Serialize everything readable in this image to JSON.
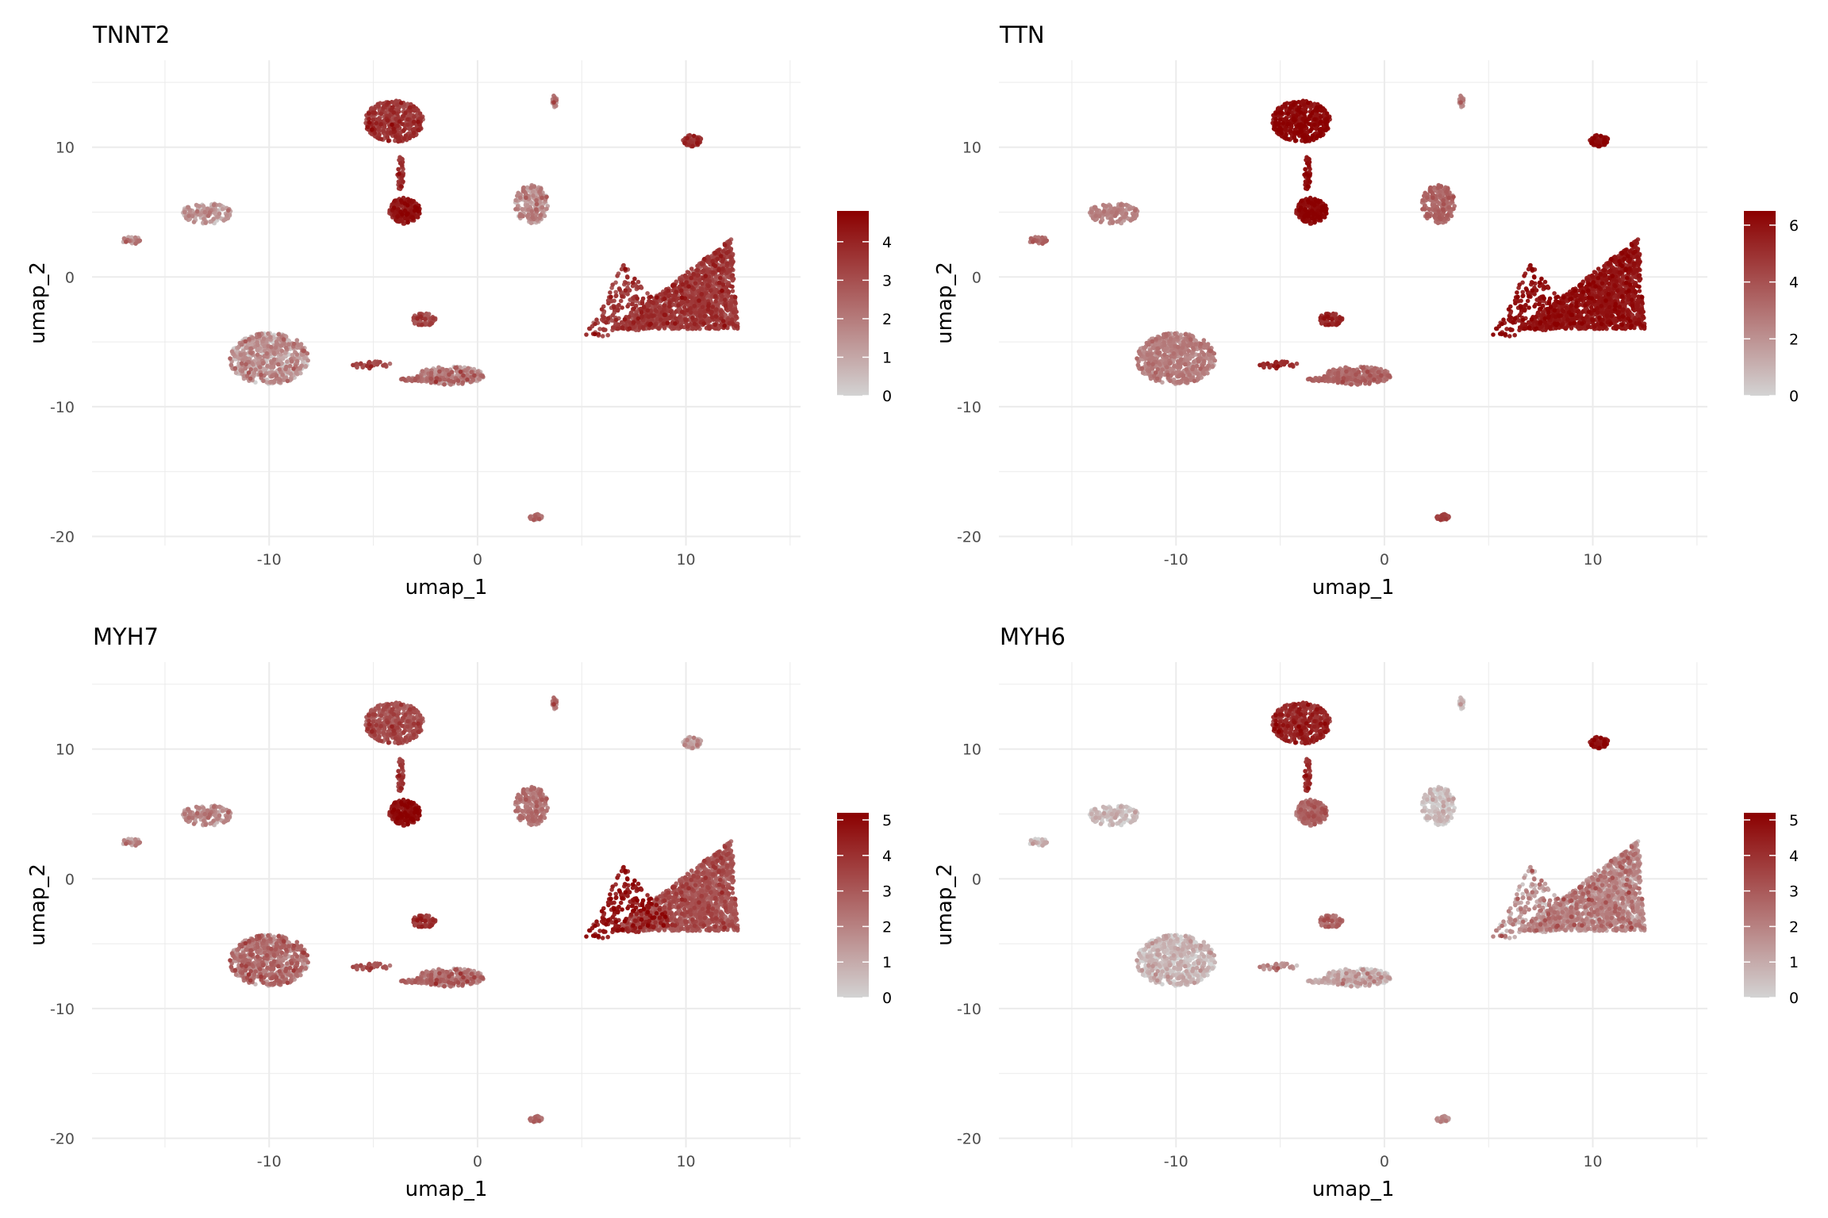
{
  "chart_data": [
    {
      "type": "scatter",
      "title": "TNNT2",
      "xlabel": "umap_1",
      "ylabel": "umap_2",
      "xlim": [
        -18.5,
        15.5
      ],
      "ylim": [
        -20.7,
        16.7
      ],
      "xticks": [
        -10,
        0,
        10
      ],
      "yticks": [
        -20,
        -10,
        0,
        10
      ],
      "grid": true,
      "legend": "right",
      "colorbar": {
        "min": 0,
        "max": 4.8,
        "ticks": [
          0,
          1,
          2,
          3,
          4
        ],
        "low_color": "#d3d3d3",
        "high_color": "#8b0000"
      },
      "expression": {
        "A_top": 3.3,
        "A_stalk": 3.4,
        "A_low": 4.0,
        "tip_top": 1.6,
        "c10": 3.5,
        "mid_up": 1.4,
        "left": 1.0,
        "far_left": 1.3,
        "star": 3.2,
        "star_arm": 3.3,
        "big_left": 1.0,
        "small_mid": 3.0,
        "mid_low": 1.5,
        "streak": 3.0,
        "line": 1.8,
        "bottom": 1.6
      }
    },
    {
      "type": "scatter",
      "title": "TTN",
      "xlabel": "umap_1",
      "ylabel": "umap_2",
      "xlim": [
        -18.5,
        15.5
      ],
      "ylim": [
        -20.7,
        16.7
      ],
      "xticks": [
        -10,
        0,
        10
      ],
      "yticks": [
        -20,
        -10,
        0,
        10
      ],
      "grid": true,
      "legend": "right",
      "colorbar": {
        "min": 0,
        "max": 6.5,
        "ticks": [
          0,
          2,
          4,
          6
        ],
        "low_color": "#d3d3d3",
        "high_color": "#8b0000"
      },
      "expression": {
        "A_top": 6.0,
        "A_stalk": 5.8,
        "A_low": 6.0,
        "tip_top": 2.0,
        "c10": 6.0,
        "mid_up": 3.2,
        "left": 2.2,
        "far_left": 3.0,
        "star": 5.6,
        "star_arm": 5.8,
        "big_left": 2.3,
        "small_mid": 5.2,
        "mid_low": 3.0,
        "streak": 5.0,
        "line": 3.0,
        "bottom": 4.0
      }
    },
    {
      "type": "scatter",
      "title": "MYH7",
      "xlabel": "umap_1",
      "ylabel": "umap_2",
      "xlim": [
        -18.5,
        15.5
      ],
      "ylim": [
        -20.7,
        16.7
      ],
      "xticks": [
        -10,
        0,
        10
      ],
      "yticks": [
        -20,
        -10,
        0,
        10
      ],
      "grid": true,
      "legend": "right",
      "colorbar": {
        "min": 0,
        "max": 5.2,
        "ticks": [
          0,
          1,
          2,
          3,
          4,
          5
        ],
        "low_color": "#d3d3d3",
        "high_color": "#8b0000"
      },
      "expression": {
        "A_top": 3.0,
        "A_stalk": 3.5,
        "A_low": 4.6,
        "tip_top": 2.0,
        "c10": 1.0,
        "mid_up": 2.2,
        "left": 1.5,
        "far_left": 1.3,
        "star": 2.9,
        "star_arm": 4.5,
        "big_left": 2.0,
        "small_mid": 3.8,
        "mid_low": 2.0,
        "streak": 3.0,
        "line": 2.0,
        "bottom": 1.8
      }
    },
    {
      "type": "scatter",
      "title": "MYH6",
      "xlabel": "umap_1",
      "ylabel": "umap_2",
      "xlim": [
        -18.5,
        15.5
      ],
      "ylim": [
        -20.7,
        16.7
      ],
      "xticks": [
        -10,
        0,
        10
      ],
      "yticks": [
        -20,
        -10,
        0,
        10
      ],
      "grid": true,
      "legend": "right",
      "colorbar": {
        "min": 0,
        "max": 5.2,
        "ticks": [
          0,
          1,
          2,
          3,
          4,
          5
        ],
        "low_color": "#d3d3d3",
        "high_color": "#8b0000"
      },
      "expression": {
        "A_top": 4.0,
        "A_stalk": 3.8,
        "A_low": 2.4,
        "tip_top": 0.2,
        "c10": 4.6,
        "mid_up": 0.3,
        "left": 0.3,
        "far_left": 0.3,
        "star": 1.5,
        "star_arm": 1.3,
        "big_left": 0.3,
        "small_mid": 2.5,
        "mid_low": 0.5,
        "streak": 1.5,
        "line": 0.4,
        "bottom": 1.0
      }
    }
  ],
  "clusters": [
    {
      "id": "A_top",
      "shape": "ellipse",
      "cx": -4.0,
      "cy": 12.0,
      "rx": 1.4,
      "ry": 1.6,
      "n": 420
    },
    {
      "id": "A_stalk",
      "shape": "ellipse",
      "cx": -3.7,
      "cy": 8.0,
      "rx": 0.15,
      "ry": 1.4,
      "n": 40
    },
    {
      "id": "A_low",
      "shape": "ellipse",
      "cx": -3.5,
      "cy": 5.1,
      "rx": 0.75,
      "ry": 1.0,
      "n": 200
    },
    {
      "id": "tip_top",
      "shape": "ellipse",
      "cx": 3.7,
      "cy": 13.5,
      "rx": 0.12,
      "ry": 0.5,
      "n": 20
    },
    {
      "id": "c10",
      "shape": "ellipse",
      "cx": 10.3,
      "cy": 10.5,
      "rx": 0.45,
      "ry": 0.45,
      "n": 60
    },
    {
      "id": "mid_up",
      "shape": "ellipse",
      "cx": 2.6,
      "cy": 5.6,
      "rx": 0.8,
      "ry": 1.5,
      "n": 180
    },
    {
      "id": "left",
      "shape": "ellipse",
      "cx": -13.0,
      "cy": 4.9,
      "rx": 1.2,
      "ry": 0.8,
      "n": 150
    },
    {
      "id": "far_left",
      "shape": "ellipse",
      "cx": -16.6,
      "cy": 2.8,
      "rx": 0.45,
      "ry": 0.3,
      "n": 35
    },
    {
      "id": "star",
      "shape": "triangle",
      "pts": [
        [
          12.2,
          3.0
        ],
        [
          6.5,
          -4.0
        ],
        [
          12.5,
          -4.0
        ]
      ],
      "n": 1300
    },
    {
      "id": "star_arm",
      "shape": "triangle",
      "pts": [
        [
          7.0,
          1.0
        ],
        [
          5.0,
          -5.0
        ],
        [
          9.5,
          -3.5
        ]
      ],
      "n": 220
    },
    {
      "id": "big_left",
      "shape": "ellipse",
      "cx": -10.0,
      "cy": -6.3,
      "rx": 1.9,
      "ry": 2.0,
      "n": 650
    },
    {
      "id": "small_mid",
      "shape": "ellipse",
      "cx": -2.6,
      "cy": -3.3,
      "rx": 0.6,
      "ry": 0.5,
      "n": 60
    },
    {
      "id": "mid_low",
      "shape": "ellipse",
      "cx": -1.3,
      "cy": -7.6,
      "rx": 1.6,
      "ry": 0.7,
      "n": 260
    },
    {
      "id": "streak",
      "shape": "ellipse",
      "cx": -5.0,
      "cy": -6.8,
      "rx": 1.0,
      "ry": 0.3,
      "n": 30
    },
    {
      "id": "line",
      "shape": "ellipse",
      "cx": -2.7,
      "cy": -7.9,
      "rx": 1.2,
      "ry": 0.15,
      "n": 60
    },
    {
      "id": "bottom",
      "shape": "ellipse",
      "cx": 2.8,
      "cy": -18.5,
      "rx": 0.3,
      "ry": 0.25,
      "n": 40
    }
  ]
}
